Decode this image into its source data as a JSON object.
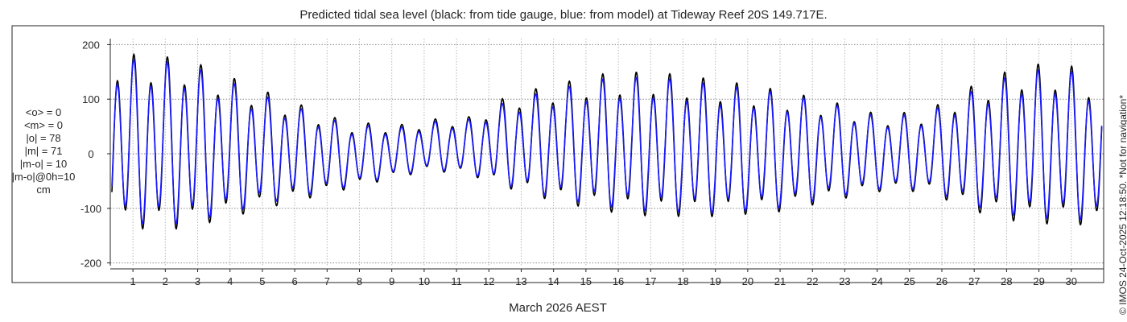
{
  "chart_data": {
    "type": "line",
    "title": "Predicted tidal sea level (black: from tide gauge, blue: from model) at Tideway Reef 20S 149.717E.",
    "xlabel": "March 2026 AEST",
    "ylabel": "",
    "xlim": [
      0.3,
      31.0
    ],
    "ylim": [
      -205,
      205
    ],
    "x_ticks": [
      1,
      2,
      3,
      4,
      5,
      6,
      7,
      8,
      9,
      10,
      11,
      12,
      13,
      14,
      15,
      16,
      17,
      18,
      19,
      20,
      21,
      22,
      23,
      24,
      25,
      26,
      27,
      28,
      29,
      30
    ],
    "y_ticks": [
      -200,
      -100,
      0,
      100,
      200
    ],
    "grid": true,
    "legend": "none",
    "stats_unit": "cm",
    "stats": [
      "<o> = 0",
      "<m> = 0",
      "|o| = 78",
      "|m| = 71",
      "|m-o| = 10",
      "|m-o|@0h=10",
      "cm"
    ],
    "credit": "© IMOS 24-Oct-2025 12:18:50. *Not for navigation*",
    "amplitude_envelope": {
      "x": [
        0.35,
        2.6,
        5.0,
        7.6,
        9.3,
        10.3,
        11.5,
        12.6,
        14.0,
        15.5,
        17.0,
        19.0,
        21.0,
        22.5,
        24.0,
        25.5,
        27.0,
        28.6,
        30.0,
        30.95
      ],
      "observed_high": [
        190,
        180,
        120,
        60,
        55,
        65,
        70,
        110,
        130,
        150,
        155,
        140,
        120,
        100,
        75,
        80,
        130,
        170,
        165,
        140
      ],
      "observed_low": [
        -150,
        -150,
        -110,
        -70,
        -45,
        -35,
        -45,
        -70,
        -95,
        -115,
        -125,
        -125,
        -115,
        -95,
        -75,
        -75,
        -115,
        -140,
        -140,
        -145
      ],
      "model_high": [
        180,
        170,
        110,
        55,
        50,
        60,
        65,
        100,
        120,
        140,
        145,
        130,
        115,
        95,
        70,
        75,
        120,
        158,
        155,
        130
      ],
      "model_low": [
        -140,
        -140,
        -100,
        -65,
        -42,
        -32,
        -42,
        -65,
        -88,
        -105,
        -115,
        -118,
        -108,
        -88,
        -70,
        -70,
        -105,
        -128,
        -130,
        -133
      ]
    },
    "series": [
      {
        "name": "black: from tide gauge",
        "color": "#000000"
      },
      {
        "name": "blue: from model",
        "color": "#1a1aff"
      }
    ]
  }
}
